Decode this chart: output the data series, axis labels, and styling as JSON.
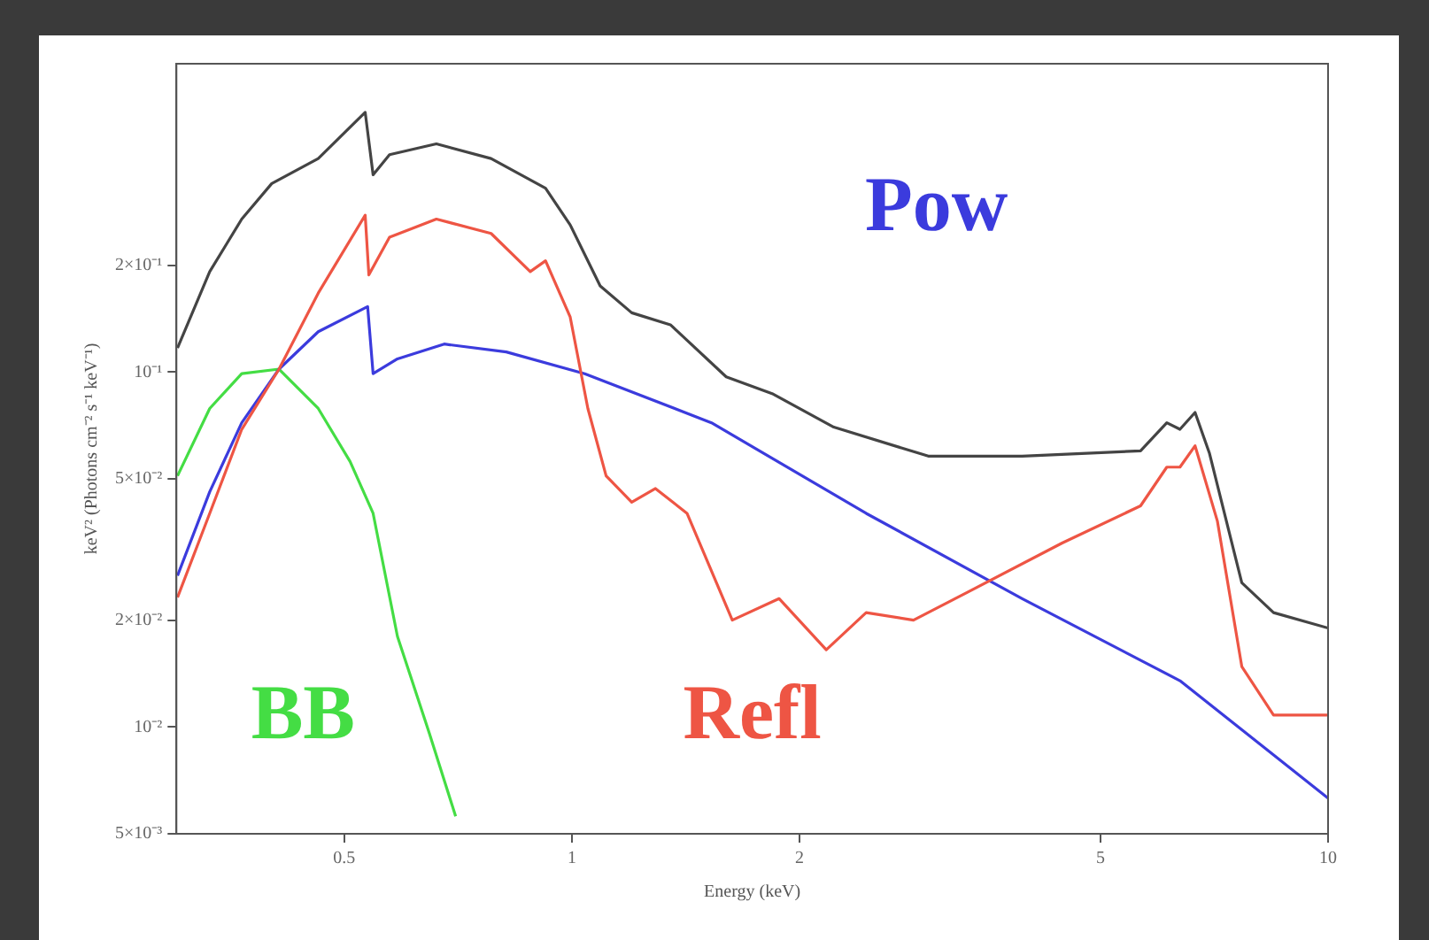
{
  "chart_data": {
    "type": "line",
    "xlabel": "Energy (keV)",
    "ylabel": "keV² (Photons cm⁻² s⁻¹ keV⁻¹)",
    "log": "xy",
    "grid": false,
    "legend": false,
    "marker": "none",
    "line_style": "solid",
    "xlim": [
      0.3,
      10
    ],
    "xticks": [
      0.5,
      1,
      2,
      5,
      10
    ],
    "ylim": [
      0.005,
      0.74
    ],
    "yticks": [
      {
        "value": 0.005,
        "label": "5×10⁻³"
      },
      {
        "value": 0.01,
        "label": "10⁻²"
      },
      {
        "value": 0.02,
        "label": "2×10⁻²"
      },
      {
        "value": 0.05,
        "label": "5×10⁻²"
      },
      {
        "value": 0.1,
        "label": "10⁻¹"
      },
      {
        "value": 0.2,
        "label": "2×10⁻¹"
      }
    ],
    "series": [
      {
        "color": "#444444",
        "x": [
          0.301,
          0.332,
          0.366,
          0.401,
          0.462,
          0.533,
          0.546,
          0.574,
          0.662,
          0.782,
          0.923,
          0.995,
          1.09,
          1.2,
          1.35,
          1.6,
          1.84,
          2.22,
          2.96,
          3.94,
          5.65,
          6.12,
          6.37,
          6.67,
          6.97,
          7.69,
          8.47,
          10
        ],
        "values": [
          0.117,
          0.192,
          0.27,
          0.34,
          0.4,
          0.54,
          0.36,
          0.41,
          0.44,
          0.4,
          0.33,
          0.26,
          0.175,
          0.147,
          0.136,
          0.097,
          0.087,
          0.07,
          0.058,
          0.058,
          0.06,
          0.072,
          0.069,
          0.077,
          0.059,
          0.0255,
          0.021,
          0.019
        ]
      },
      {
        "name": "Refl",
        "color": "#ee5544",
        "x": [
          0.301,
          0.332,
          0.366,
          0.41,
          0.462,
          0.533,
          0.539,
          0.574,
          0.662,
          0.782,
          0.881,
          0.923,
          0.995,
          1.05,
          1.11,
          1.2,
          1.29,
          1.42,
          1.63,
          1.88,
          2.17,
          2.45,
          2.83,
          3.34,
          4.45,
          5.65,
          6.12,
          6.37,
          6.67,
          7.14,
          7.69,
          8.47,
          10
        ],
        "values": [
          0.0232,
          0.04,
          0.069,
          0.102,
          0.167,
          0.277,
          0.188,
          0.24,
          0.27,
          0.246,
          0.192,
          0.206,
          0.143,
          0.079,
          0.051,
          0.043,
          0.047,
          0.04,
          0.02,
          0.023,
          0.0165,
          0.021,
          0.02,
          0.024,
          0.033,
          0.042,
          0.054,
          0.054,
          0.062,
          0.038,
          0.0148,
          0.0108,
          0.0108
        ]
      },
      {
        "name": "Pow",
        "color": "#3b3bdd",
        "x": [
          0.301,
          0.332,
          0.366,
          0.41,
          0.462,
          0.537,
          0.546,
          0.588,
          0.678,
          0.819,
          1.04,
          1.53,
          2.45,
          3.94,
          6.37,
          10
        ],
        "values": [
          0.0267,
          0.046,
          0.072,
          0.102,
          0.13,
          0.153,
          0.099,
          0.109,
          0.12,
          0.114,
          0.099,
          0.072,
          0.04,
          0.023,
          0.0135,
          0.0063
        ]
      },
      {
        "name": "BB",
        "color": "#44dd44",
        "x": [
          0.301,
          0.332,
          0.366,
          0.41,
          0.462,
          0.509,
          0.546,
          0.588,
          0.648,
          0.702
        ],
        "values": [
          0.051,
          0.079,
          0.099,
          0.102,
          0.079,
          0.056,
          0.04,
          0.018,
          0.0096,
          0.0056
        ]
      }
    ]
  }
}
